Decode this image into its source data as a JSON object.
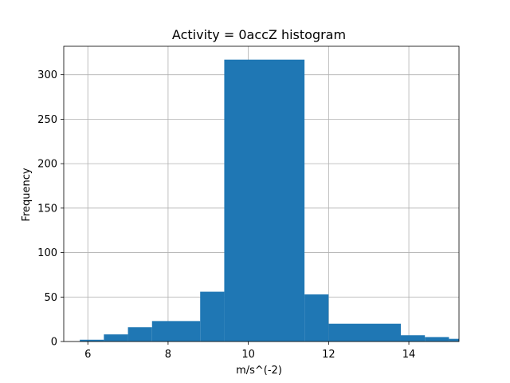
{
  "chart_data": {
    "type": "bar",
    "title": "Activity = 0accZ histogram",
    "xlabel": "m/s^(-2)",
    "ylabel": "Frequency",
    "xlim": [
      5.4,
      15.25
    ],
    "ylim": [
      0,
      332
    ],
    "xticks": [
      6,
      8,
      10,
      12,
      14
    ],
    "yticks": [
      0,
      50,
      100,
      150,
      200,
      250,
      300
    ],
    "grid": true,
    "bar_color": "#1f77b4",
    "bins": [
      {
        "x0": 5.8,
        "x1": 6.4,
        "value": 2
      },
      {
        "x0": 6.4,
        "x1": 7.0,
        "value": 8
      },
      {
        "x0": 7.0,
        "x1": 7.6,
        "value": 16
      },
      {
        "x0": 7.6,
        "x1": 8.8,
        "value": 23
      },
      {
        "x0": 8.8,
        "x1": 9.4,
        "value": 56
      },
      {
        "x0": 9.4,
        "x1": 11.4,
        "value": 317
      },
      {
        "x0": 11.4,
        "x1": 12.0,
        "value": 53
      },
      {
        "x0": 12.0,
        "x1": 13.8,
        "value": 20
      },
      {
        "x0": 13.8,
        "x1": 14.4,
        "value": 7
      },
      {
        "x0": 14.4,
        "x1": 15.0,
        "value": 5
      },
      {
        "x0": 15.0,
        "x1": 15.25,
        "value": 3
      }
    ]
  }
}
